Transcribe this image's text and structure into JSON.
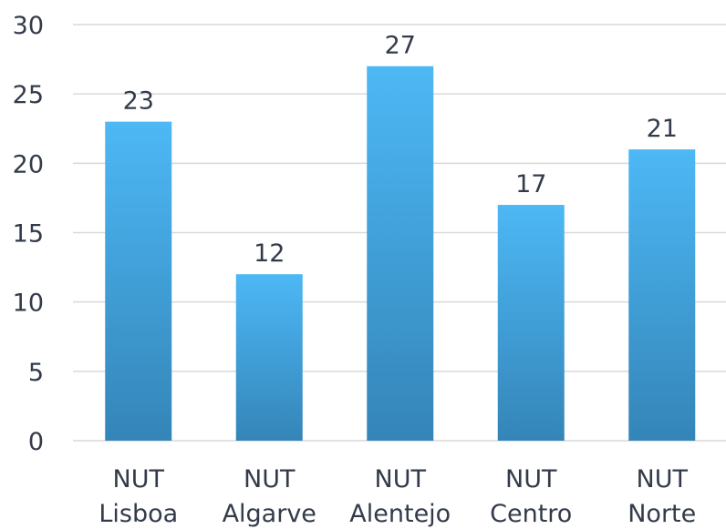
{
  "chart_data": {
    "type": "bar",
    "categories": [
      [
        "NUT",
        "Lisboa"
      ],
      [
        "NUT",
        "Algarve"
      ],
      [
        "NUT",
        "Alentejo"
      ],
      [
        "NUT",
        "Centro"
      ],
      [
        "NUT",
        "Norte"
      ]
    ],
    "values": [
      23,
      12,
      27,
      17,
      21
    ],
    "data_labels": [
      "23",
      "12",
      "27",
      "17",
      "21"
    ],
    "y_ticks": [
      "0",
      "5",
      "10",
      "15",
      "20",
      "25",
      "30"
    ],
    "ylim": [
      0,
      30
    ],
    "title": "",
    "xlabel": "",
    "ylabel": "",
    "grid": true,
    "legend": "none",
    "colors": {
      "bar_top": "#4db8f5",
      "bar_bottom": "#3485b8",
      "grid": "#d9d9d9",
      "text": "#333b4a"
    }
  }
}
